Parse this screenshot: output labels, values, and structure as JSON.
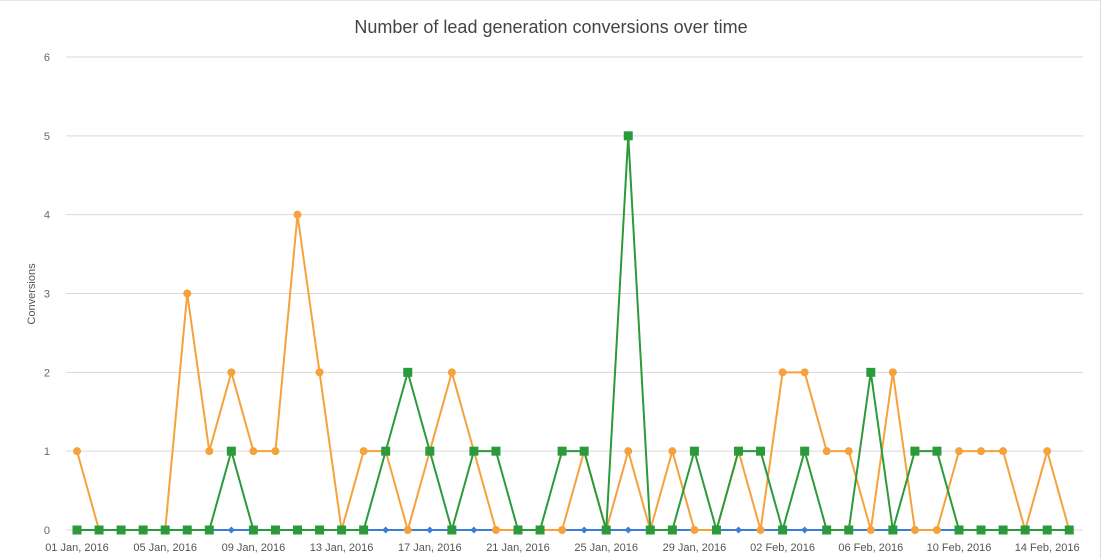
{
  "chart_data": {
    "type": "line",
    "title": "Number of lead generation conversions over time",
    "xlabel": "",
    "ylabel": "Conversions",
    "ylim": [
      0,
      6
    ],
    "yticks": [
      "0",
      "1",
      "2",
      "3",
      "4",
      "5",
      "6"
    ],
    "grid": true,
    "legend": "none",
    "x": [
      "01 Jan, 2016",
      "02 Jan, 2016",
      "03 Jan, 2016",
      "04 Jan, 2016",
      "05 Jan, 2016",
      "06 Jan, 2016",
      "07 Jan, 2016",
      "08 Jan, 2016",
      "09 Jan, 2016",
      "10 Jan, 2016",
      "11 Jan, 2016",
      "12 Jan, 2016",
      "13 Jan, 2016",
      "14 Jan, 2016",
      "15 Jan, 2016",
      "16 Jan, 2016",
      "17 Jan, 2016",
      "18 Jan, 2016",
      "19 Jan, 2016",
      "20 Jan, 2016",
      "21 Jan, 2016",
      "22 Jan, 2016",
      "23 Jan, 2016",
      "24 Jan, 2016",
      "25 Jan, 2016",
      "26 Jan, 2016",
      "27 Jan, 2016",
      "28 Jan, 2016",
      "29 Jan, 2016",
      "30 Jan, 2016",
      "31 Jan, 2016",
      "01 Feb, 2016",
      "02 Feb, 2016",
      "03 Feb, 2016",
      "04 Feb, 2016",
      "05 Feb, 2016",
      "06 Feb, 2016",
      "07 Feb, 2016",
      "08 Feb, 2016",
      "09 Feb, 2016",
      "10 Feb, 2016",
      "11 Feb, 2016",
      "12 Feb, 2016",
      "13 Feb, 2016",
      "14 Feb, 2016",
      "15 Feb, 2016"
    ],
    "xtick_labels": [
      "01 Jan, 2016",
      "05 Jan, 2016",
      "09 Jan, 2016",
      "13 Jan, 2016",
      "17 Jan, 2016",
      "21 Jan, 2016",
      "25 Jan, 2016",
      "29 Jan, 2016",
      "02 Feb, 2016",
      "06 Feb, 2016",
      "10 Feb, 2016",
      "14 Feb, 2016"
    ],
    "series": [
      {
        "color": "#3a7fd5",
        "marker": "diamond",
        "values": [
          0,
          0,
          0,
          0,
          0,
          0,
          0,
          0,
          0,
          0,
          0,
          0,
          0,
          0,
          0,
          0,
          0,
          0,
          0,
          0,
          0,
          0,
          0,
          0,
          0,
          0,
          0,
          0,
          0,
          0,
          0,
          0,
          0,
          0,
          0,
          0,
          0,
          0,
          0,
          0,
          0,
          0,
          0,
          0,
          0,
          0
        ]
      },
      {
        "color": "#f5a23c",
        "marker": "circle",
        "values": [
          1,
          0,
          0,
          0,
          0,
          3,
          1,
          2,
          1,
          1,
          4,
          2,
          0,
          1,
          1,
          0,
          1,
          2,
          1,
          0,
          0,
          0,
          0,
          1,
          0,
          1,
          0,
          1,
          0,
          0,
          1,
          0,
          2,
          2,
          1,
          1,
          0,
          2,
          0,
          0,
          1,
          1,
          1,
          0,
          1,
          0
        ]
      },
      {
        "color": "#2a9a3b",
        "marker": "square",
        "values": [
          0,
          0,
          0,
          0,
          0,
          0,
          0,
          1,
          0,
          0,
          0,
          0,
          0,
          0,
          1,
          2,
          1,
          0,
          1,
          1,
          0,
          0,
          1,
          1,
          0,
          5,
          0,
          0,
          1,
          0,
          1,
          1,
          0,
          1,
          0,
          0,
          2,
          0,
          1,
          1,
          0,
          0,
          0,
          0,
          0,
          0
        ]
      }
    ]
  }
}
